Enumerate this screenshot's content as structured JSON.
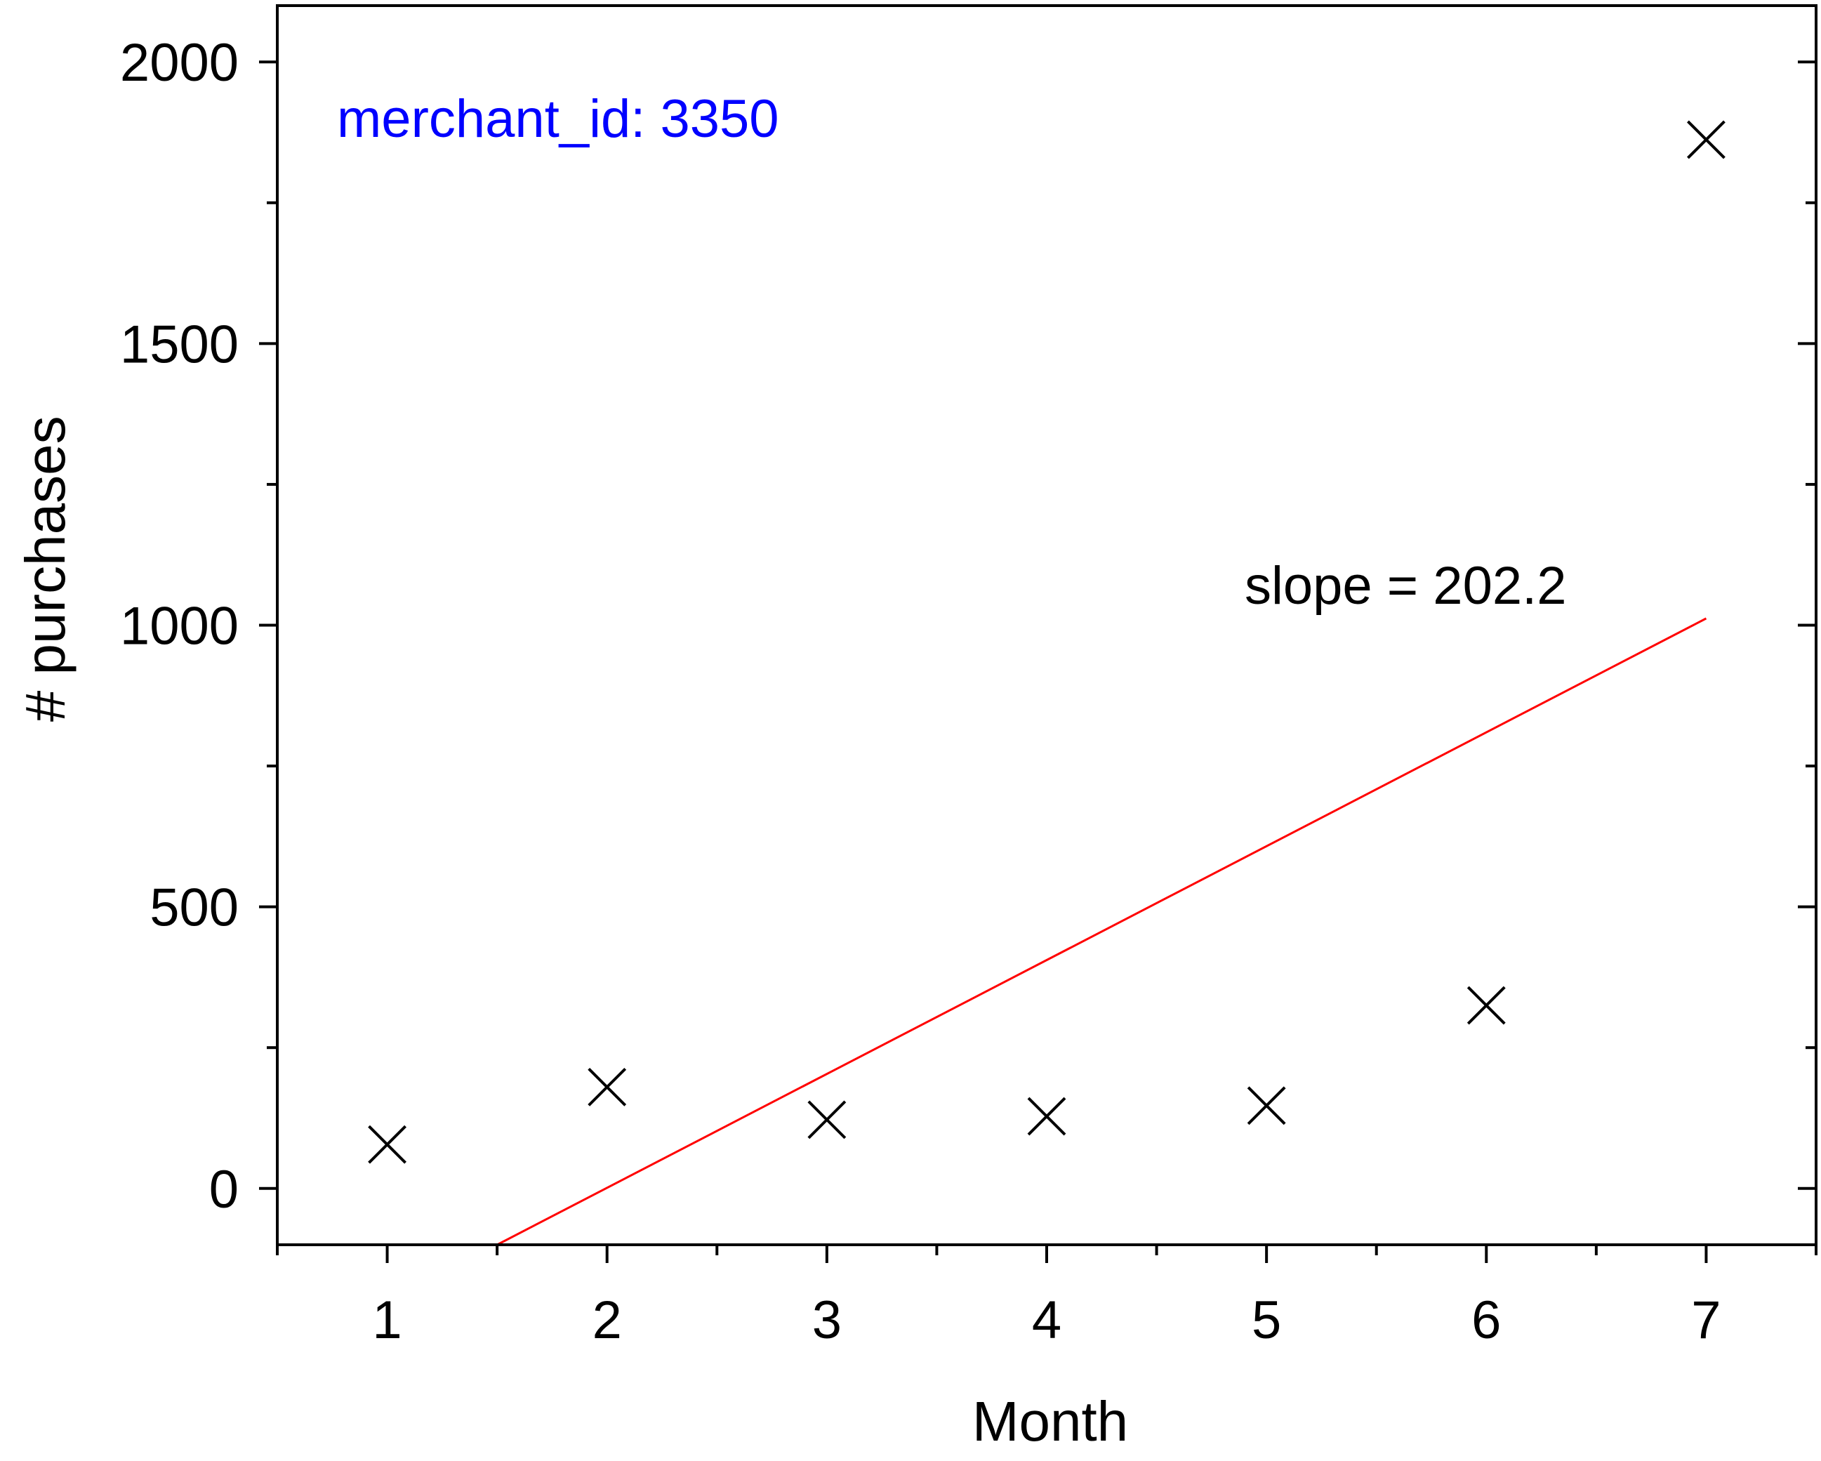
{
  "chart_data": {
    "type": "scatter",
    "title": "",
    "xlabel": "Month",
    "ylabel": "# purchases",
    "xlim": [
      0.5,
      7.5
    ],
    "ylim": [
      -100,
      2100
    ],
    "xticks": [
      1,
      2,
      3,
      4,
      5,
      6,
      7
    ],
    "yticks": [
      0,
      500,
      1000,
      1500,
      2000
    ],
    "x_tick_labels": [
      "1",
      "2",
      "3",
      "4",
      "5",
      "6",
      "7"
    ],
    "y_tick_labels": [
      "0",
      "500",
      "1000",
      "1500",
      "2000"
    ],
    "grid": false,
    "series": [
      {
        "marker": "x",
        "color": "#000000",
        "x": [
          1,
          2,
          3,
          4,
          5,
          6,
          7
        ],
        "y": [
          78,
          180,
          122,
          128,
          147,
          325,
          1862
        ]
      }
    ],
    "fit_line": {
      "color": "#ff0000",
      "x": [
        1.5,
        7
      ],
      "y": [
        -100,
        1012
      ]
    },
    "annotations": {
      "merchant": "merchant_id: 3350",
      "merchant_color": "#0000ff",
      "slope": "slope = 202.2"
    }
  }
}
